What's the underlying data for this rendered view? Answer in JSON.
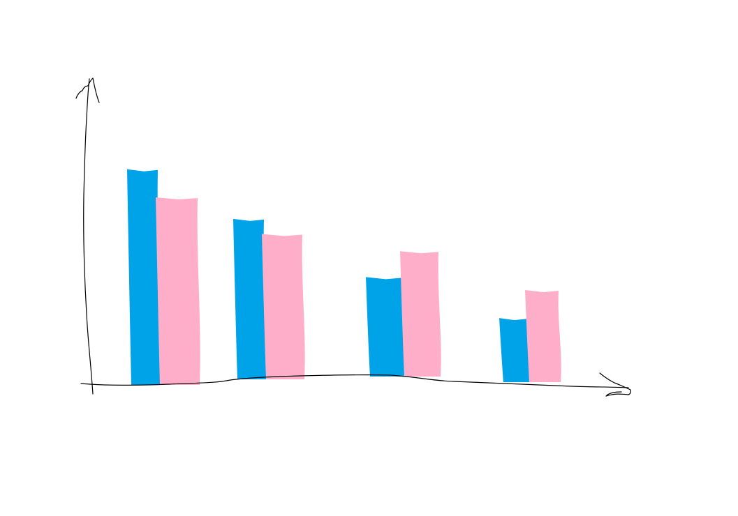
{
  "chart_data": {
    "type": "bar",
    "title": "",
    "xlabel": "",
    "ylabel": "",
    "categories": [
      "",
      "",
      "",
      ""
    ],
    "series": [
      {
        "name": "",
        "color": "#00a2e8",
        "values": [
          100,
          77,
          50,
          31
        ]
      },
      {
        "name": "",
        "color": "#ffaec9",
        "values": [
          87,
          70,
          62,
          44
        ]
      }
    ],
    "ylim": [
      0,
      130
    ],
    "grid": false,
    "legend": "none"
  }
}
